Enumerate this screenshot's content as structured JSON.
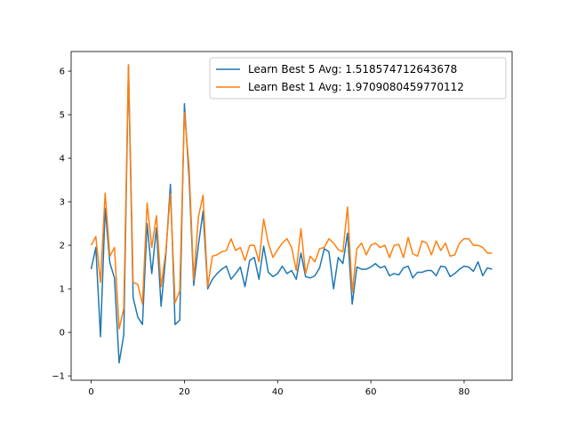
{
  "chart_data": {
    "type": "line",
    "title": "",
    "xlabel": "",
    "ylabel": "",
    "xlim": [
      -4.3,
      90.3
    ],
    "ylim": [
      -1.1,
      6.45
    ],
    "xticks": [
      0,
      20,
      40,
      60,
      80
    ],
    "yticks": [
      -1,
      0,
      1,
      2,
      3,
      4,
      5,
      6
    ],
    "grid": false,
    "legend_location": "upper-right",
    "x": [
      0,
      1,
      2,
      3,
      4,
      5,
      6,
      7,
      8,
      9,
      10,
      11,
      12,
      13,
      14,
      15,
      16,
      17,
      18,
      19,
      20,
      21,
      22,
      23,
      24,
      25,
      26,
      27,
      28,
      29,
      30,
      31,
      32,
      33,
      34,
      35,
      36,
      37,
      38,
      39,
      40,
      41,
      42,
      43,
      44,
      45,
      46,
      47,
      48,
      49,
      50,
      51,
      52,
      53,
      54,
      55,
      56,
      57,
      58,
      59,
      60,
      61,
      62,
      63,
      64,
      65,
      66,
      67,
      68,
      69,
      70,
      71,
      72,
      73,
      74,
      75,
      76,
      77,
      78,
      79,
      80,
      81,
      82,
      83,
      84,
      85,
      86
    ],
    "series": [
      {
        "name": "Learn Best 5 Avg: 1.518574712643678",
        "color": "#1f77b4",
        "values": [
          1.45,
          1.95,
          -0.1,
          2.85,
          1.6,
          1.25,
          -0.7,
          -0.05,
          6.12,
          0.8,
          0.35,
          0.18,
          2.5,
          1.35,
          2.4,
          0.6,
          1.75,
          3.4,
          0.18,
          0.28,
          5.25,
          3.55,
          1.08,
          2.0,
          2.78,
          1.0,
          1.22,
          1.35,
          1.45,
          1.52,
          1.22,
          1.35,
          1.5,
          1.05,
          1.65,
          1.72,
          1.22,
          1.98,
          1.38,
          1.28,
          1.35,
          1.52,
          1.35,
          1.42,
          1.22,
          1.82,
          1.28,
          1.25,
          1.3,
          1.48,
          1.92,
          1.85,
          1.0,
          1.72,
          1.58,
          2.28,
          0.65,
          1.5,
          1.45,
          1.45,
          1.5,
          1.58,
          1.48,
          1.52,
          1.3,
          1.35,
          1.32,
          1.48,
          1.52,
          1.25,
          1.38,
          1.38,
          1.42,
          1.42,
          1.3,
          1.52,
          1.5,
          1.28,
          1.35,
          1.45,
          1.52,
          1.5,
          1.4,
          1.62,
          1.3,
          1.48,
          1.45
        ]
      },
      {
        "name": "Learn Best 1 Avg: 1.9709080459770112",
        "color": "#ff7f0e",
        "values": [
          2.0,
          2.2,
          1.15,
          3.2,
          1.75,
          1.95,
          0.08,
          0.55,
          6.15,
          1.15,
          1.1,
          0.65,
          2.97,
          1.95,
          2.68,
          1.05,
          1.85,
          3.18,
          0.68,
          0.95,
          5.05,
          3.8,
          1.2,
          2.65,
          3.15,
          1.05,
          1.75,
          1.78,
          1.85,
          1.88,
          2.15,
          1.88,
          1.95,
          1.65,
          2.0,
          2.0,
          1.62,
          2.6,
          2.05,
          1.72,
          1.9,
          2.05,
          2.15,
          1.95,
          1.42,
          2.38,
          1.35,
          1.75,
          1.62,
          1.92,
          1.95,
          2.15,
          2.05,
          1.9,
          1.85,
          2.88,
          0.92,
          1.92,
          2.05,
          1.78,
          2.0,
          2.05,
          1.95,
          2.0,
          1.72,
          2.0,
          2.02,
          1.72,
          2.18,
          1.8,
          1.75,
          2.1,
          2.05,
          1.78,
          2.1,
          1.88,
          2.05,
          1.75,
          1.78,
          2.05,
          2.15,
          2.15,
          2.0,
          2.0,
          1.95,
          1.82,
          1.82
        ]
      }
    ]
  }
}
